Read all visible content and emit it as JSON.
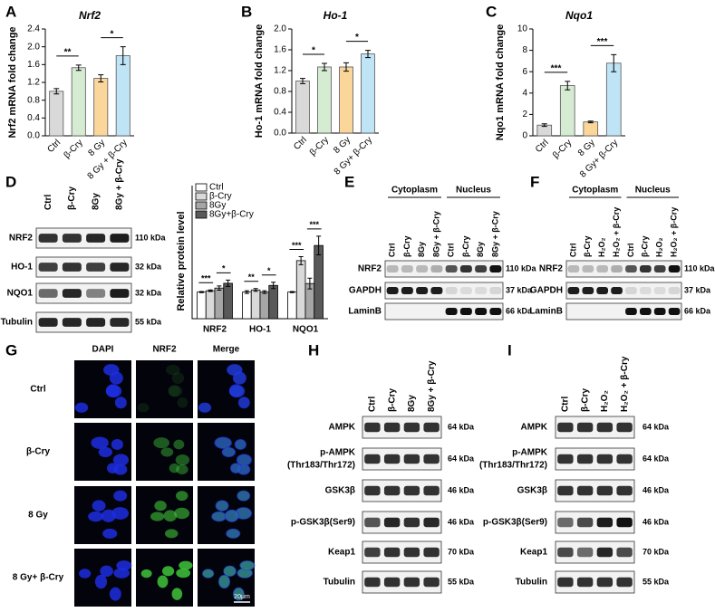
{
  "panel_labels": [
    "A",
    "B",
    "C",
    "D",
    "E",
    "F",
    "G",
    "H",
    "I"
  ],
  "chart_data": [
    {
      "type": "bar",
      "title": "Nrf2",
      "y_label": "Nrf2 mRNA fold change",
      "categories": [
        "Ctrl",
        "β-Cry",
        "8 Gy",
        "8 Gy + β-Cry"
      ],
      "values": [
        1.0,
        1.53,
        1.29,
        1.8
      ],
      "errors": [
        0.06,
        0.06,
        0.08,
        0.2
      ],
      "colors": [
        "#d9d9d9",
        "#d5ebd2",
        "#fbd69b",
        "#bfe4f6"
      ],
      "ylim": [
        0,
        2.4
      ],
      "yticks": [
        {
          "value": 0,
          "label": "0.0"
        },
        0.4,
        0.8,
        1.2,
        1.6,
        {
          "value": 2,
          "label": "2.0"
        },
        2.4
      ],
      "annotations": [
        "**",
        "*"
      ]
    },
    {
      "type": "bar",
      "title": "Ho-1",
      "y_label": "Ho-1 mRNA fold change",
      "categories": [
        "Ctrl",
        "β-Cry",
        "8 Gy",
        "8 Gy+ β-Cry"
      ],
      "values": [
        1.0,
        1.27,
        1.27,
        1.52
      ],
      "errors": [
        0.05,
        0.07,
        0.08,
        0.07
      ],
      "colors": [
        "#d9d9d9",
        "#d5ebd2",
        "#fbd69b",
        "#bfe4f6"
      ],
      "ylim": [
        0,
        2
      ],
      "yticks": [
        {
          "value": 0,
          "label": "0.0"
        },
        0.4,
        0.8,
        1.2,
        1.6,
        {
          "value": 2,
          "label": "2.0"
        }
      ],
      "annotations": [
        "*",
        "*"
      ]
    },
    {
      "type": "bar",
      "title": "Nqo1",
      "y_label": "Nqo1 mRNA fold change",
      "categories": [
        "Ctrl",
        "β-Cry",
        "8 Gy",
        "8 Gy+ β-Cry"
      ],
      "values": [
        1.0,
        4.7,
        1.3,
        6.8
      ],
      "errors": [
        0.12,
        0.4,
        0.08,
        0.8
      ],
      "colors": [
        "#d9d9d9",
        "#d5ebd2",
        "#fbd69b",
        "#bfe4f6"
      ],
      "ylim": [
        0,
        10
      ],
      "yticks": [
        0,
        2,
        4,
        6,
        8,
        10
      ],
      "annotations": [
        "***",
        "***"
      ]
    },
    {
      "type": "grouped_bar",
      "y_label": "Relative protein level",
      "categories": [
        "NRF2",
        "HO-1",
        "NQO1"
      ],
      "series": [
        {
          "name": "Ctrl",
          "color": "#ffffff",
          "values": [
            1.0,
            1.0,
            1.0
          ],
          "errors": [
            0.02,
            0.05,
            0.02
          ]
        },
        {
          "name": "β-Cry",
          "color": "#d9d9d9",
          "values": [
            1.05,
            1.08,
            2.18
          ],
          "errors": [
            0.03,
            0.05,
            0.15
          ]
        },
        {
          "name": "8Gy",
          "color": "#a6a6a6",
          "values": [
            1.15,
            1.0,
            1.32
          ],
          "errors": [
            0.08,
            0.05,
            0.2
          ]
        },
        {
          "name": "8Gy+β-Cry",
          "color": "#595959",
          "values": [
            1.33,
            1.25,
            2.75
          ],
          "errors": [
            0.12,
            0.12,
            0.35
          ]
        }
      ],
      "ylim": [
        0,
        5
      ],
      "annotations": [
        [
          "***",
          "*"
        ],
        [
          "**",
          "*"
        ],
        [
          "***",
          "***"
        ]
      ]
    }
  ],
  "blot_d": {
    "lanes": [
      "Ctrl",
      "β-Cry",
      "8Gy",
      "8Gy + β-Cry"
    ],
    "rows": [
      {
        "label": "NRF2",
        "size": "110 kDa"
      },
      {
        "label": "HO-1",
        "size": "32 kDa"
      },
      {
        "label": "NQO1",
        "size": "32 kDa"
      },
      {
        "label": "Tubulin",
        "size": "55 kDa"
      }
    ]
  },
  "blot_e": {
    "groups": [
      "Cytoplasm",
      "Nucleus"
    ],
    "lanes": [
      "Ctrl",
      "β-Cry",
      "8Gy",
      "8Gy + β-Cry",
      "Ctrl",
      "β-Cry",
      "8Gy",
      "8Gy + β-Cry"
    ],
    "rows": [
      {
        "label": "NRF2",
        "size": "110 kDa"
      },
      {
        "label": "GAPDH",
        "size": "37 kDa"
      },
      {
        "label": "LaminB",
        "size": "66 kDa"
      }
    ]
  },
  "blot_f": {
    "groups": [
      "Cytoplasm",
      "Nucleus"
    ],
    "lanes": [
      "Ctrl",
      "β-Cry",
      "H₂O₂",
      "H₂O₂ + β-Cry",
      "Ctrl",
      "β-Cry",
      "H₂O₂",
      "H₂O₂ + β-Cry"
    ],
    "rows": [
      {
        "label": "NRF2",
        "size": "110 kDa"
      },
      {
        "label": "GAPDH",
        "size": "37 kDa"
      },
      {
        "label": "LaminB",
        "size": "66 kDa"
      }
    ]
  },
  "imaging": {
    "columns": [
      "DAPI",
      "NRF2",
      "Merge"
    ],
    "rows": [
      "Ctrl",
      "β-Cry",
      "8 Gy",
      "8 Gy+ β-Cry"
    ],
    "scale_bar": "20μm"
  },
  "blot_h": {
    "lanes": [
      "Ctrl",
      "β-Cry",
      "8Gy",
      "8Gy + β-Cry"
    ],
    "rows": [
      {
        "label": "AMPK",
        "size": "64 kDa"
      },
      {
        "label": "p-AMPK",
        "label2": "(Thr183/Thr172)",
        "size": "64 kDa"
      },
      {
        "label": "GSK3β",
        "size": "46 kDa"
      },
      {
        "label": "p-GSK3β(Ser9)",
        "size": "46 kDa"
      },
      {
        "label": "Keap1",
        "size": "70 kDa"
      },
      {
        "label": "Tubulin",
        "size": "55 kDa"
      }
    ]
  },
  "blot_i": {
    "lanes": [
      "Ctrl",
      "β-Cry",
      "H₂O₂",
      "H₂O₂ + β-Cry"
    ],
    "rows": [
      {
        "label": "AMPK",
        "size": "64 kDa"
      },
      {
        "label": "p-AMPK",
        "label2": "(Thr183/Thr172)",
        "size": "64 kDa"
      },
      {
        "label": "GSK3β",
        "size": "46 kDa"
      },
      {
        "label": "p-GSK3β(Ser9)",
        "size": "46 kDa"
      },
      {
        "label": "Keap1",
        "size": "70 kDa"
      },
      {
        "label": "Tubulin",
        "size": "55 kDa"
      }
    ]
  }
}
